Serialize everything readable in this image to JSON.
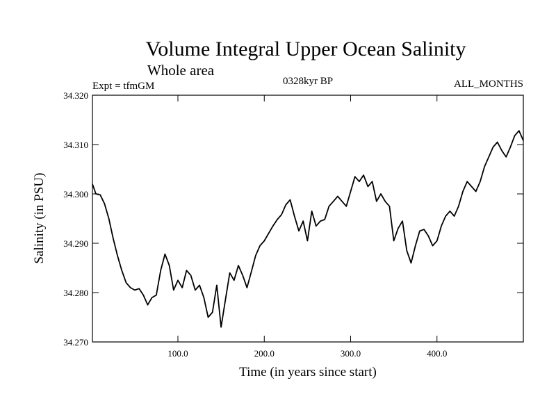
{
  "chart_data": {
    "type": "line",
    "title": "Volume Integral Upper Ocean Salinity",
    "subtitle": "Whole area",
    "experiment": "Expt = tfmGM",
    "period": "0328kyr BP",
    "months": "ALL_MONTHS",
    "xlabel": "Time (in years since start)",
    "ylabel": "Salinity (in PSU)",
    "xlim": [
      1,
      500
    ],
    "ylim": [
      34.27,
      34.32
    ],
    "xticks": [
      100,
      200,
      300,
      400
    ],
    "xtick_labels": [
      "100.0",
      "200.0",
      "300.0",
      "400.0"
    ],
    "yticks": [
      34.27,
      34.28,
      34.29,
      34.3,
      34.31,
      34.32
    ],
    "ytick_labels": [
      "34.270",
      "34.280",
      "34.290",
      "34.300",
      "34.310",
      "34.320"
    ],
    "grid": false,
    "line_color": "#000000",
    "series": [
      {
        "x": [
          1,
          5,
          10,
          15,
          20,
          25,
          30,
          35,
          40,
          45,
          50,
          55,
          60,
          65,
          70,
          75,
          80,
          85,
          90,
          95,
          100,
          105,
          110,
          115,
          120,
          125,
          130,
          135,
          140,
          145,
          150,
          155,
          160,
          165,
          170,
          175,
          180,
          185,
          190,
          195,
          200,
          205,
          210,
          215,
          220,
          225,
          230,
          235,
          240,
          245,
          250,
          255,
          260,
          265,
          270,
          275,
          280,
          285,
          290,
          295,
          300,
          305,
          310,
          315,
          320,
          325,
          330,
          335,
          340,
          345,
          350,
          355,
          360,
          365,
          370,
          375,
          380,
          385,
          390,
          395,
          400,
          405,
          410,
          415,
          420,
          425,
          430,
          435,
          440,
          445,
          450,
          455,
          460,
          465,
          470,
          475,
          480,
          485,
          490,
          495,
          500
        ],
        "y": [
          34.302,
          34.3,
          34.2998,
          34.298,
          34.295,
          34.291,
          34.2875,
          34.2845,
          34.282,
          34.281,
          34.2805,
          34.2808,
          34.2795,
          34.2775,
          34.279,
          34.2795,
          34.2845,
          34.2878,
          34.2855,
          34.2805,
          34.2825,
          34.281,
          34.2845,
          34.2835,
          34.2805,
          34.2815,
          34.279,
          34.275,
          34.276,
          34.2815,
          34.273,
          34.2785,
          34.284,
          34.2825,
          34.2855,
          34.2835,
          34.281,
          34.2842,
          34.2875,
          34.2895,
          34.2905,
          34.292,
          34.2935,
          34.2948,
          34.2958,
          34.2978,
          34.2988,
          34.2955,
          34.2925,
          34.2945,
          34.2905,
          34.2965,
          34.2935,
          34.2945,
          34.2948,
          34.2975,
          34.2985,
          34.2995,
          34.2985,
          34.2975,
          34.3005,
          34.3035,
          34.3025,
          34.3038,
          34.3015,
          34.3025,
          34.2985,
          34.3,
          34.2985,
          34.2975,
          34.2905,
          34.293,
          34.2945,
          34.2885,
          34.286,
          34.2895,
          34.2925,
          34.2928,
          34.2915,
          34.2895,
          34.2905,
          34.2935,
          34.2955,
          34.2965,
          34.2955,
          34.2975,
          34.3005,
          34.3025,
          34.3015,
          34.3005,
          34.3025,
          34.3055,
          34.3075,
          34.3095,
          34.3105,
          34.3088,
          34.3075,
          34.3095,
          34.3118,
          34.3128,
          34.3108
        ]
      }
    ]
  }
}
